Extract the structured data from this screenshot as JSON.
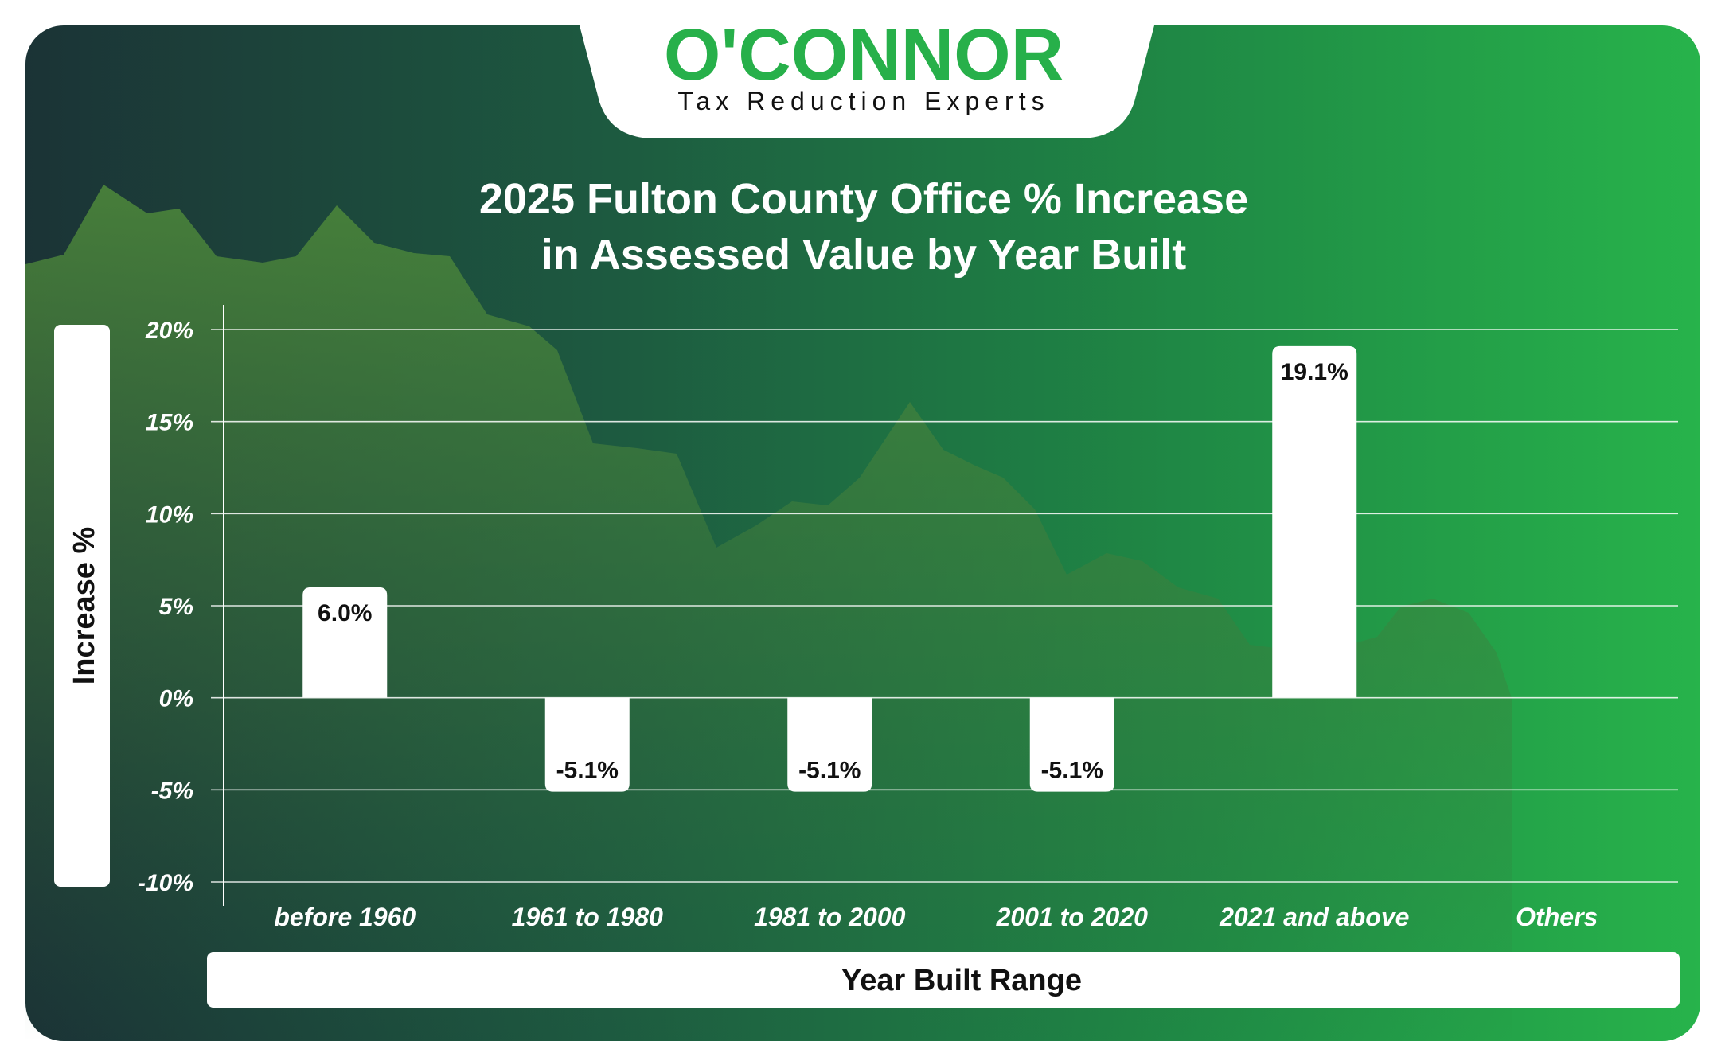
{
  "logo": {
    "name": "O'CONNOR",
    "tagline": "Tax Reduction Experts"
  },
  "colors": {
    "bg_dark": "#1a3a38",
    "bg_mid": "#1e6e44",
    "bg_light": "#27b04a",
    "bar": "#ffffff",
    "logo_green": "#27b04a"
  },
  "chart_data": {
    "type": "bar",
    "title_lines": [
      "2025 Fulton County Office % Increase",
      "in Assessed Value by Year Built"
    ],
    "xlabel": "Year Built Range",
    "ylabel": "Increase %",
    "categories": [
      "before 1960",
      "1961 to 1980",
      "1981 to 2000",
      "2001 to 2020",
      "2021 and above",
      "Others"
    ],
    "values": [
      6.0,
      -5.1,
      -5.1,
      -5.1,
      19.1,
      null
    ],
    "data_labels": [
      "6.0%",
      "-5.1%",
      "-5.1%",
      "-5.1%",
      "19.1%",
      ""
    ],
    "ylim": [
      -10,
      20
    ],
    "yticks": [
      20,
      15,
      10,
      5,
      0,
      -5,
      -10
    ],
    "ytick_labels": [
      "20%",
      "15%",
      "10%",
      "5%",
      "0%",
      "-5%",
      "-10%"
    ],
    "grid": true,
    "legend": "none"
  }
}
